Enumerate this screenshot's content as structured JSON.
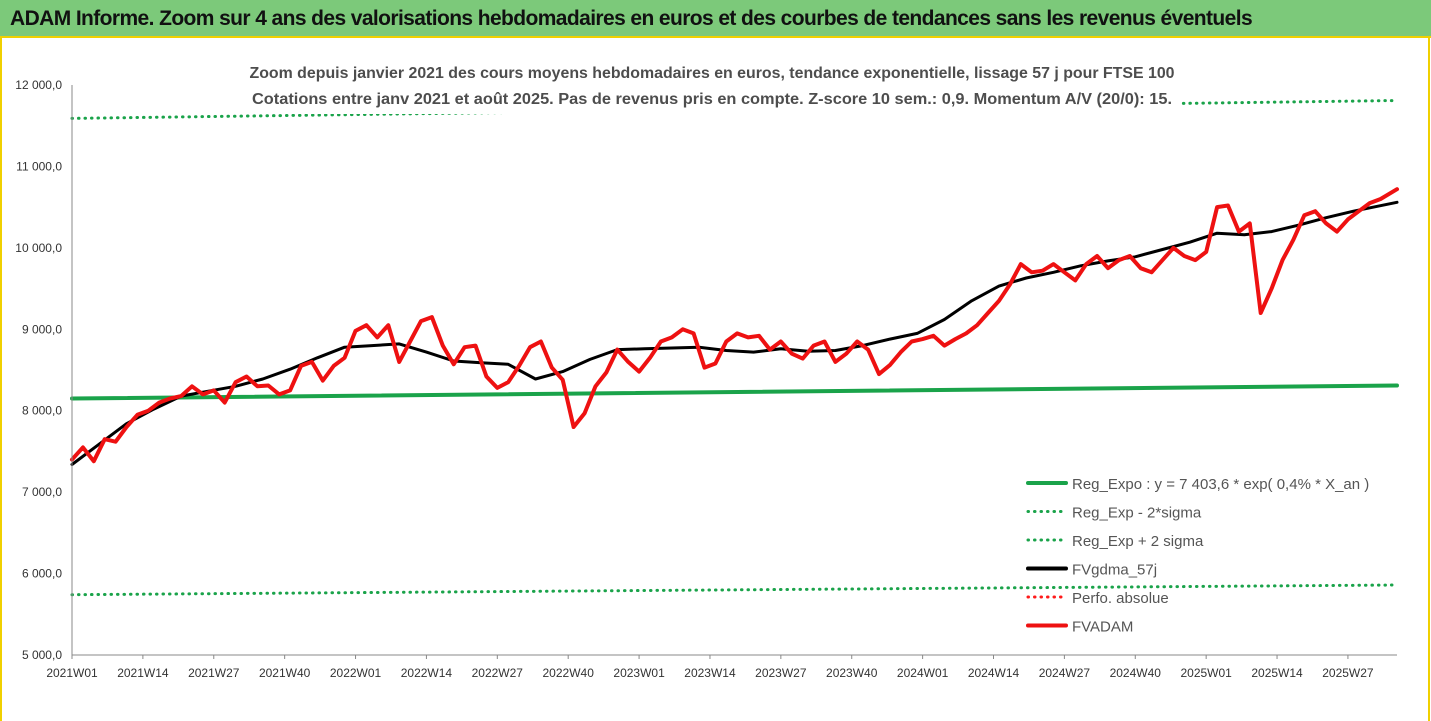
{
  "header": {
    "title": "ADAM Informe. Zoom sur 4 ans des valorisations hebdomadaires en euros et des courbes de tendances sans les revenus éventuels"
  },
  "chart_data": {
    "type": "line",
    "title": "Zoom depuis janvier 2021 des cours moyens hebdomadaires en euros, tendance exponentielle, lissage 57 j pour FTSE 100",
    "subtitle": "Cotations entre janv 2021 et août 2025. Pas de revenus pris en compte. Z-score 10 sem.: 0,9. Momentum A/V (20/0): 15.",
    "xlabel": "",
    "ylabel": "",
    "ylim": [
      5000,
      12000
    ],
    "yticks": [
      5000,
      6000,
      7000,
      8000,
      9000,
      10000,
      11000,
      12000
    ],
    "ytick_labels": [
      "5 000,0",
      "6 000,0",
      "7 000,0",
      "8 000,0",
      "9 000,0",
      "10 000,0",
      "11 000,0",
      "12 000,0"
    ],
    "xlim": [
      0,
      243
    ],
    "xticks": [
      0,
      13,
      26,
      39,
      52,
      65,
      78,
      91,
      104,
      117,
      130,
      143,
      156,
      169,
      182,
      195,
      208,
      221,
      234
    ],
    "xtick_labels": [
      "2021W01",
      "2021W14",
      "2021W27",
      "2021W40",
      "2022W01",
      "2022W14",
      "2022W27",
      "2022W40",
      "2023W01",
      "2023W14",
      "2023W27",
      "2023W40",
      "2024W01",
      "2024W14",
      "2024W27",
      "2024W40",
      "2025W01",
      "2025W14",
      "2025W27"
    ],
    "grid": false,
    "legend_position": "bottom-right",
    "series": [
      {
        "name": "Reg_Expo : y = 7 403,6 * exp( 0,4% *  X_an )",
        "color": "#1aa34a",
        "style": "solid",
        "x": [
          0,
          243
        ],
        "y": [
          8150,
          8310
        ]
      },
      {
        "name": "Reg_Exp - 2*sigma",
        "color": "#1aa34a",
        "style": "dotted",
        "x": [
          0,
          243
        ],
        "y": [
          5740,
          5860
        ]
      },
      {
        "name": "Reg_Exp + 2 sigma",
        "color": "#1aa34a",
        "style": "dotted",
        "x": [
          0,
          243
        ],
        "y": [
          11590,
          11810
        ]
      },
      {
        "name": "FVgdma_57j",
        "color": "#000000",
        "style": "solid",
        "x": [
          0,
          5,
          10,
          15,
          20,
          25,
          30,
          35,
          40,
          45,
          50,
          55,
          60,
          65,
          70,
          75,
          80,
          85,
          90,
          95,
          100,
          105,
          110,
          115,
          120,
          125,
          130,
          135,
          140,
          145,
          150,
          155,
          160,
          165,
          170,
          175,
          180,
          185,
          190,
          195,
          200,
          205,
          210,
          215,
          220,
          225,
          230,
          235,
          243
        ],
        "y": [
          7340,
          7590,
          7840,
          8020,
          8180,
          8240,
          8300,
          8390,
          8510,
          8650,
          8780,
          8800,
          8820,
          8720,
          8610,
          8590,
          8570,
          8390,
          8480,
          8630,
          8750,
          8760,
          8770,
          8780,
          8740,
          8720,
          8760,
          8730,
          8740,
          8800,
          8880,
          8950,
          9120,
          9350,
          9530,
          9630,
          9700,
          9780,
          9840,
          9890,
          9980,
          10070,
          10180,
          10160,
          10200,
          10280,
          10370,
          10450,
          10560
        ]
      },
      {
        "name": "Perfo. absolue",
        "color": "#ff1a1a",
        "style": "dotted",
        "x": [],
        "y": []
      },
      {
        "name": "FVADAM",
        "color": "#ee1111",
        "style": "solid",
        "x": [
          0,
          2,
          4,
          6,
          8,
          10,
          12,
          14,
          16,
          18,
          20,
          22,
          24,
          26,
          28,
          30,
          32,
          34,
          36,
          38,
          40,
          42,
          44,
          46,
          48,
          50,
          52,
          54,
          56,
          58,
          60,
          62,
          64,
          66,
          68,
          70,
          72,
          74,
          76,
          78,
          80,
          82,
          84,
          86,
          88,
          90,
          92,
          94,
          96,
          98,
          100,
          102,
          104,
          106,
          108,
          110,
          112,
          114,
          116,
          118,
          120,
          122,
          124,
          126,
          128,
          130,
          132,
          134,
          136,
          138,
          140,
          142,
          144,
          146,
          148,
          150,
          152,
          154,
          156,
          158,
          160,
          162,
          164,
          166,
          168,
          170,
          172,
          174,
          176,
          178,
          180,
          182,
          184,
          186,
          188,
          190,
          192,
          194,
          196,
          198,
          200,
          202,
          204,
          206,
          208,
          210,
          212,
          214,
          216,
          218,
          220,
          222,
          224,
          226,
          228,
          230,
          232,
          234,
          236,
          238,
          240,
          243
        ],
        "y": [
          7400,
          7550,
          7380,
          7650,
          7620,
          7800,
          7950,
          8000,
          8100,
          8150,
          8180,
          8300,
          8200,
          8250,
          8100,
          8350,
          8420,
          8300,
          8310,
          8200,
          8250,
          8550,
          8600,
          8370,
          8550,
          8650,
          8980,
          9050,
          8900,
          9050,
          8600,
          8850,
          9100,
          9150,
          8800,
          8570,
          8780,
          8800,
          8420,
          8280,
          8350,
          8550,
          8780,
          8850,
          8530,
          8380,
          7800,
          7970,
          8300,
          8470,
          8750,
          8600,
          8480,
          8650,
          8850,
          8900,
          9000,
          8950,
          8530,
          8580,
          8850,
          8950,
          8900,
          8920,
          8750,
          8850,
          8700,
          8640,
          8800,
          8850,
          8600,
          8700,
          8850,
          8750,
          8450,
          8560,
          8720,
          8850,
          8880,
          8920,
          8800,
          8880,
          8950,
          9050,
          9200,
          9350,
          9550,
          9800,
          9700,
          9720,
          9800,
          9700,
          9600,
          9800,
          9900,
          9750,
          9850,
          9900,
          9750,
          9700,
          9850,
          10000,
          9900,
          9850,
          9950,
          10500,
          10520,
          10200,
          10300,
          9200,
          9500,
          9850,
          10100,
          10400,
          10450,
          10300,
          10200,
          10350,
          10450,
          10550,
          10600,
          10720
        ]
      }
    ]
  }
}
